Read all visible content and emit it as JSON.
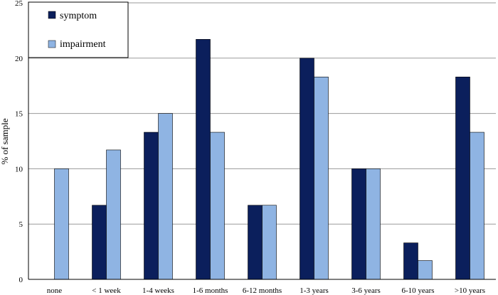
{
  "chart_data": {
    "type": "bar",
    "title": "",
    "xlabel": "",
    "ylabel": "% of sample",
    "ylim": [
      0,
      25
    ],
    "yticks": [
      0,
      5,
      10,
      15,
      20,
      25
    ],
    "grid": true,
    "legend_position": "top-left",
    "categories": [
      "none",
      "< 1 week",
      "1-4 weeks",
      "1-6 months",
      "6-12 months",
      "1-3 years",
      "3-6 years",
      "6-10 years",
      ">10 years"
    ],
    "series": [
      {
        "name": "symptom",
        "color": "#0b1f5c",
        "values": [
          0,
          6.7,
          13.3,
          21.7,
          6.7,
          20.0,
          10.0,
          3.3,
          18.3
        ]
      },
      {
        "name": "impairment",
        "color": "#8fb4e3",
        "values": [
          10.0,
          11.7,
          15.0,
          13.3,
          6.7,
          18.3,
          10.0,
          1.7,
          13.3
        ]
      }
    ]
  }
}
